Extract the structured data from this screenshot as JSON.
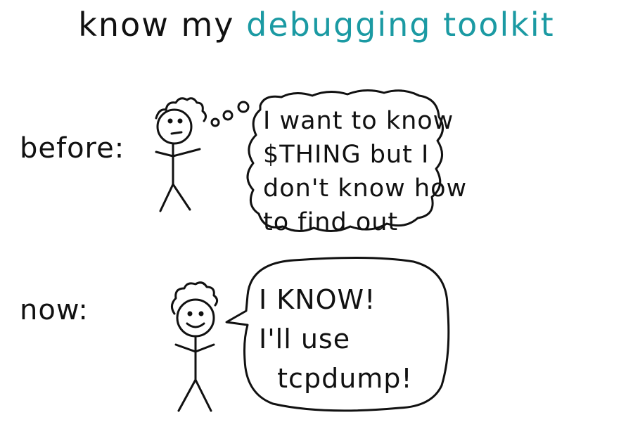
{
  "title": {
    "prefix": "know my",
    "highlight": "debugging toolkit",
    "accent_color": "#1b9aa3"
  },
  "before": {
    "label": "before:",
    "thought_lines": [
      "I want to know",
      "$THING but I",
      "don't know how",
      "to find out"
    ]
  },
  "now": {
    "label": "now:",
    "speech_lines": [
      "I KNOW!",
      "I'll use",
      "  tcpdump!"
    ]
  },
  "ink_color": "#111111"
}
